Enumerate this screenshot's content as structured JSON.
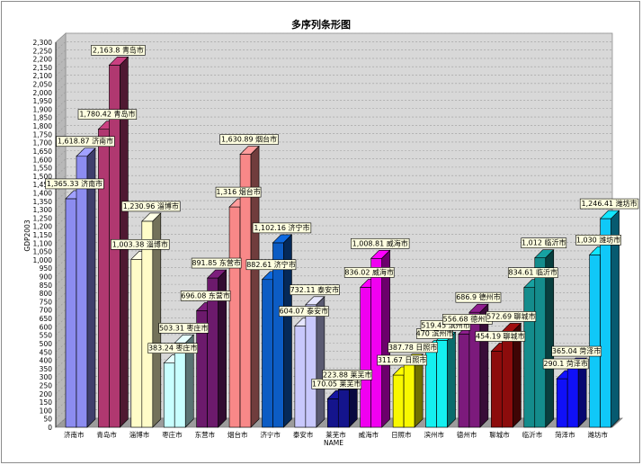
{
  "chart_data": {
    "type": "bar",
    "title": "多序列条形图",
    "xlabel": "NAME",
    "ylabel": "GDP2003",
    "ylim": [
      0,
      2300
    ],
    "ytick_step": 50,
    "grid": true,
    "categories": [
      "济南市",
      "青岛市",
      "淄博市",
      "枣庄市",
      "东营市",
      "烟台市",
      "济宁市",
      "泰安市",
      "莱芜市",
      "威海市",
      "日照市",
      "滨州市",
      "德州市",
      "聊城市",
      "临沂市",
      "菏泽市",
      "潍坊市"
    ],
    "series": [
      {
        "values": [
          1365.33,
          1780.42,
          1003.38,
          383.24,
          696.08,
          1316,
          882.61,
          604.07,
          170.05,
          836.02,
          311.67,
          470,
          556.68,
          454.19,
          834.61,
          290.1,
          1030
        ]
      },
      {
        "values": [
          1618.87,
          2163.8,
          1230.96,
          503.31,
          891.85,
          1630.89,
          1102.16,
          732.11,
          223.88,
          1008.81,
          387.78,
          519.45,
          686.9,
          572.69,
          1012,
          365.04,
          1246.41
        ]
      }
    ],
    "data_labels": [
      [
        "1,365.33 济南市",
        "1,780.42 青岛市",
        "1,003.38 淄博市",
        "383.24 枣庄市",
        "696.08 东营市",
        "1,316 烟台市",
        "882.61 济宁市",
        "604.07 泰安市",
        "170.05 莱芜市",
        "836.02 威海市",
        "311.67 日照市",
        "470 滨州市",
        "556.68 德州市",
        "454.19 聊城市",
        "834.61 临沂市",
        "290.1 菏泽市",
        "1,030 潍坊市"
      ],
      [
        "1,618.87 济南市",
        "2,163.8 青岛市",
        "1,230.96 淄博市",
        "503.31 枣庄市",
        "891.85 东营市",
        "1,630.89 烟台市",
        "1,102.16 济宁市",
        "732.11 泰安市",
        "223.88 莱芜市",
        "1,008.81 威海市",
        "387.78 日照市",
        "519.45 滨州市",
        "686.9 德州市",
        "572.69 聊城市",
        "1,012 临沂市",
        "365.04 菏泽市",
        "1,246.41 潍坊市"
      ]
    ],
    "colors": [
      [
        "#8c8cf0",
        "#b03870",
        "#fffcc8",
        "#c8ffff",
        "#6c1a6c",
        "#f88888",
        "#0c5cc4",
        "#c8c8fc",
        "#14148c",
        "#f000f0",
        "#f8f800",
        "#14f0f0",
        "#7c1a7c",
        "#8c0c0c",
        "#148c8c",
        "#1010f8",
        "#10c8f8"
      ],
      [
        "#8c8cf0",
        "#b03870",
        "#fffcc8",
        "#c8ffff",
        "#6c1a6c",
        "#f88888",
        "#0c5cc4",
        "#c8c8fc",
        "#14148c",
        "#f000f0",
        "#f8f800",
        "#14f0f0",
        "#7c1a7c",
        "#8c0c0c",
        "#148c8c",
        "#1010f8",
        "#10c8f8"
      ]
    ]
  }
}
